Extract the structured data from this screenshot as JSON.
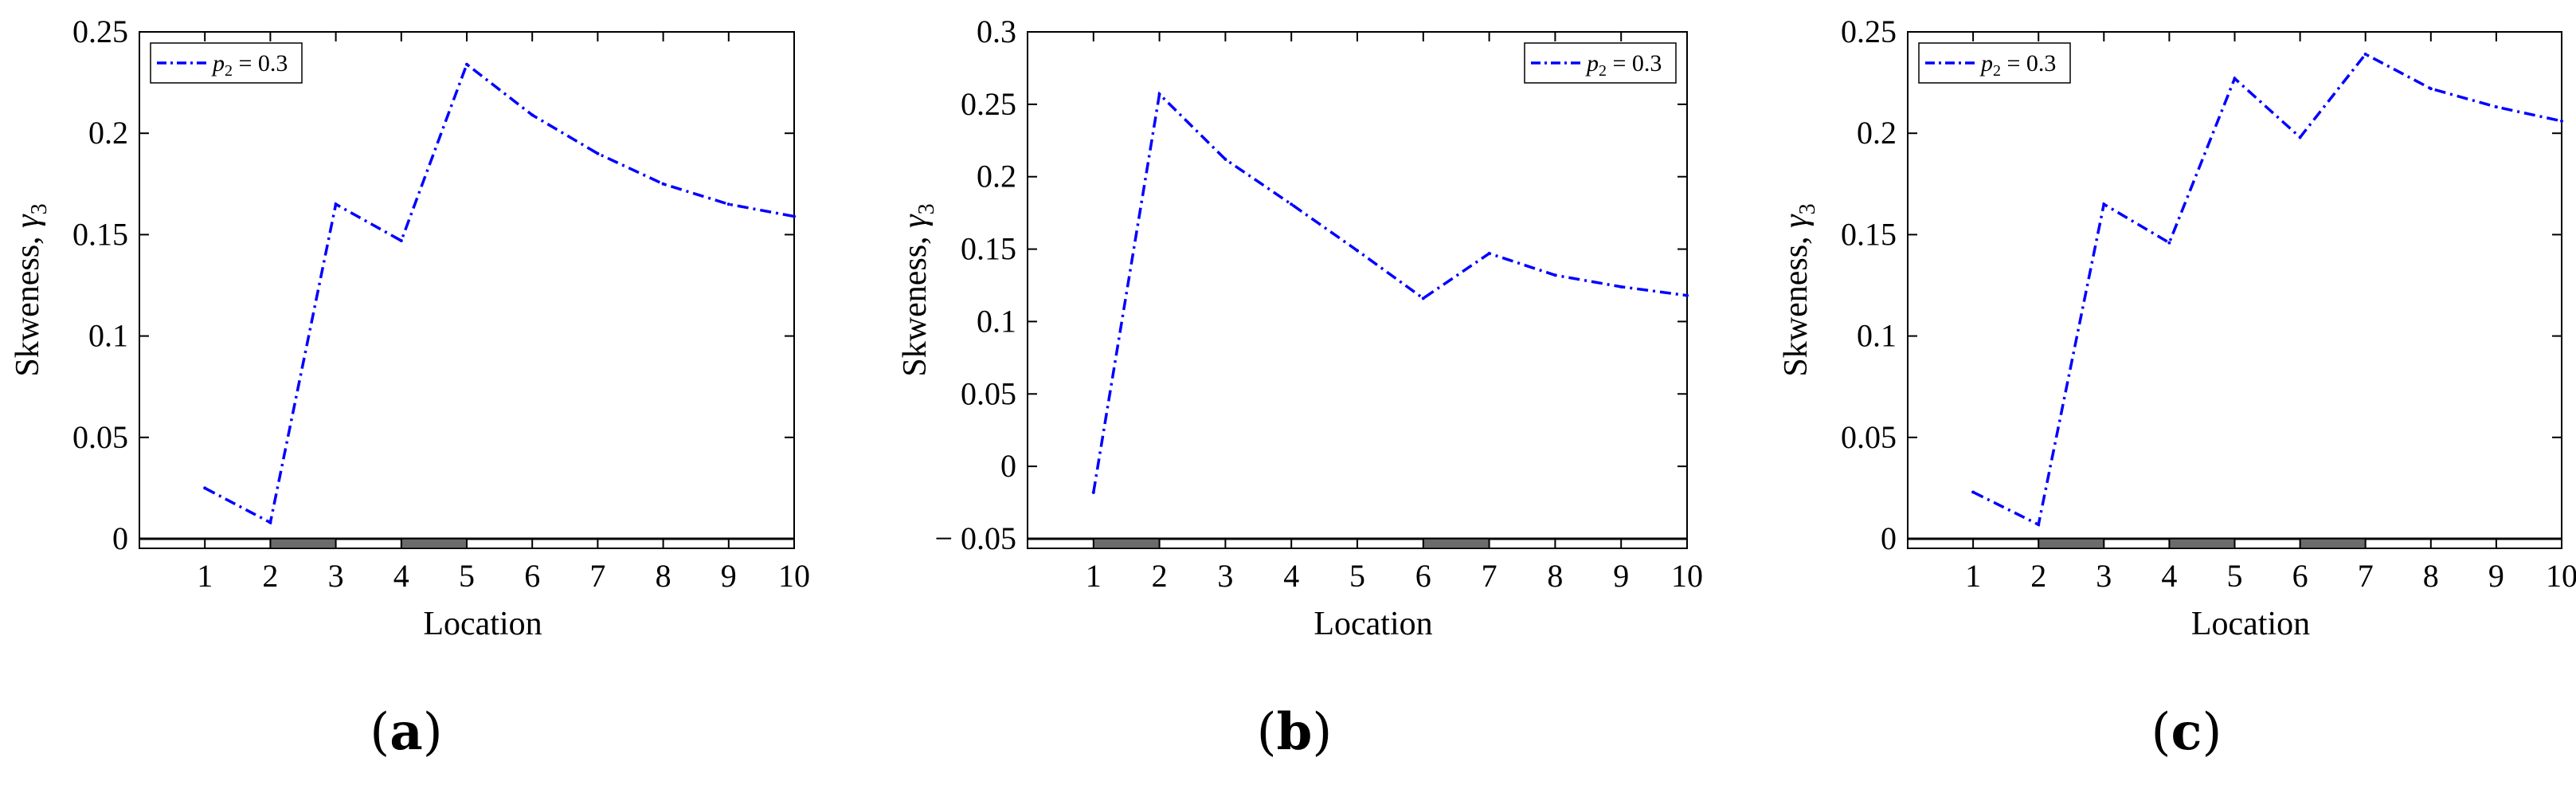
{
  "chart_data": [
    {
      "type": "line",
      "caption": "a",
      "xlabel": "Location",
      "ylabel_text": "Skweness, ",
      "ylabel_sym": "γ",
      "ylabel_sub": "3",
      "x": [
        1,
        2,
        3,
        4,
        5,
        6,
        7,
        8,
        9,
        10
      ],
      "xticks": [
        "1",
        "2",
        "3",
        "4",
        "5",
        "6",
        "7",
        "8",
        "9",
        "10"
      ],
      "xlim": [
        0,
        10
      ],
      "ylim": [
        0,
        0.25
      ],
      "yticks": [
        "0",
        "0.05",
        "0.1",
        "0.15",
        "0.2",
        "0.25"
      ],
      "ytick_values": [
        0,
        0.05,
        0.1,
        0.15,
        0.2,
        0.25
      ],
      "grid": false,
      "legend_position": "top-left",
      "series": [
        {
          "name_sym": "p",
          "name_sub": "2",
          "name_rest": " = 0.3",
          "color": "#0000ff",
          "style": "dash-dot",
          "values": [
            0.025,
            0.008,
            0.165,
            0.147,
            0.234,
            0.209,
            0.19,
            0.175,
            0.165,
            0.159
          ]
        }
      ],
      "damaged_segments": [
        [
          2,
          3
        ],
        [
          4,
          5
        ]
      ]
    },
    {
      "type": "line",
      "caption": "b",
      "xlabel": "Location",
      "ylabel_text": "Skweness, ",
      "ylabel_sym": "γ",
      "ylabel_sub": "3",
      "x": [
        1,
        2,
        3,
        4,
        5,
        6,
        7,
        8,
        9,
        10
      ],
      "xticks": [
        "1",
        "2",
        "3",
        "4",
        "5",
        "6",
        "7",
        "8",
        "9",
        "10"
      ],
      "xlim": [
        0,
        10
      ],
      "ylim": [
        -0.05,
        0.3
      ],
      "yticks": [
        "− 0.05",
        "0",
        "0.05",
        "0.1",
        "0.15",
        "0.2",
        "0.25",
        "0.3"
      ],
      "ytick_values": [
        -0.05,
        0,
        0.05,
        0.1,
        0.15,
        0.2,
        0.25,
        0.3
      ],
      "grid": false,
      "legend_position": "top-right",
      "series": [
        {
          "name_sym": "p",
          "name_sub": "2",
          "name_rest": " = 0.3",
          "color": "#0000ff",
          "style": "dash-dot",
          "values": [
            -0.018,
            0.257,
            0.212,
            0.181,
            0.149,
            0.116,
            0.147,
            0.132,
            0.124,
            0.118
          ]
        }
      ],
      "damaged_segments": [
        [
          1,
          2
        ],
        [
          6,
          7
        ]
      ]
    },
    {
      "type": "line",
      "caption": "c",
      "xlabel": "Location",
      "ylabel_text": "Skweness, ",
      "ylabel_sym": "γ",
      "ylabel_sub": "3",
      "x": [
        1,
        2,
        3,
        4,
        5,
        6,
        7,
        8,
        9,
        10
      ],
      "xticks": [
        "1",
        "2",
        "3",
        "4",
        "5",
        "6",
        "7",
        "8",
        "9",
        "10"
      ],
      "xlim": [
        0,
        10
      ],
      "ylim": [
        0,
        0.25
      ],
      "yticks": [
        "0",
        "0.05",
        "0.1",
        "0.15",
        "0.2",
        "0.25"
      ],
      "ytick_values": [
        0,
        0.05,
        0.1,
        0.15,
        0.2,
        0.25
      ],
      "grid": false,
      "legend_position": "top-left",
      "series": [
        {
          "name_sym": "p",
          "name_sub": "2",
          "name_rest": " = 0.3",
          "color": "#0000ff",
          "style": "dash-dot",
          "values": [
            0.023,
            0.007,
            0.165,
            0.146,
            0.227,
            0.198,
            0.239,
            0.222,
            0.213,
            0.206
          ]
        }
      ],
      "damaged_segments": [
        [
          2,
          3
        ],
        [
          4,
          5
        ],
        [
          6,
          7
        ]
      ]
    }
  ]
}
